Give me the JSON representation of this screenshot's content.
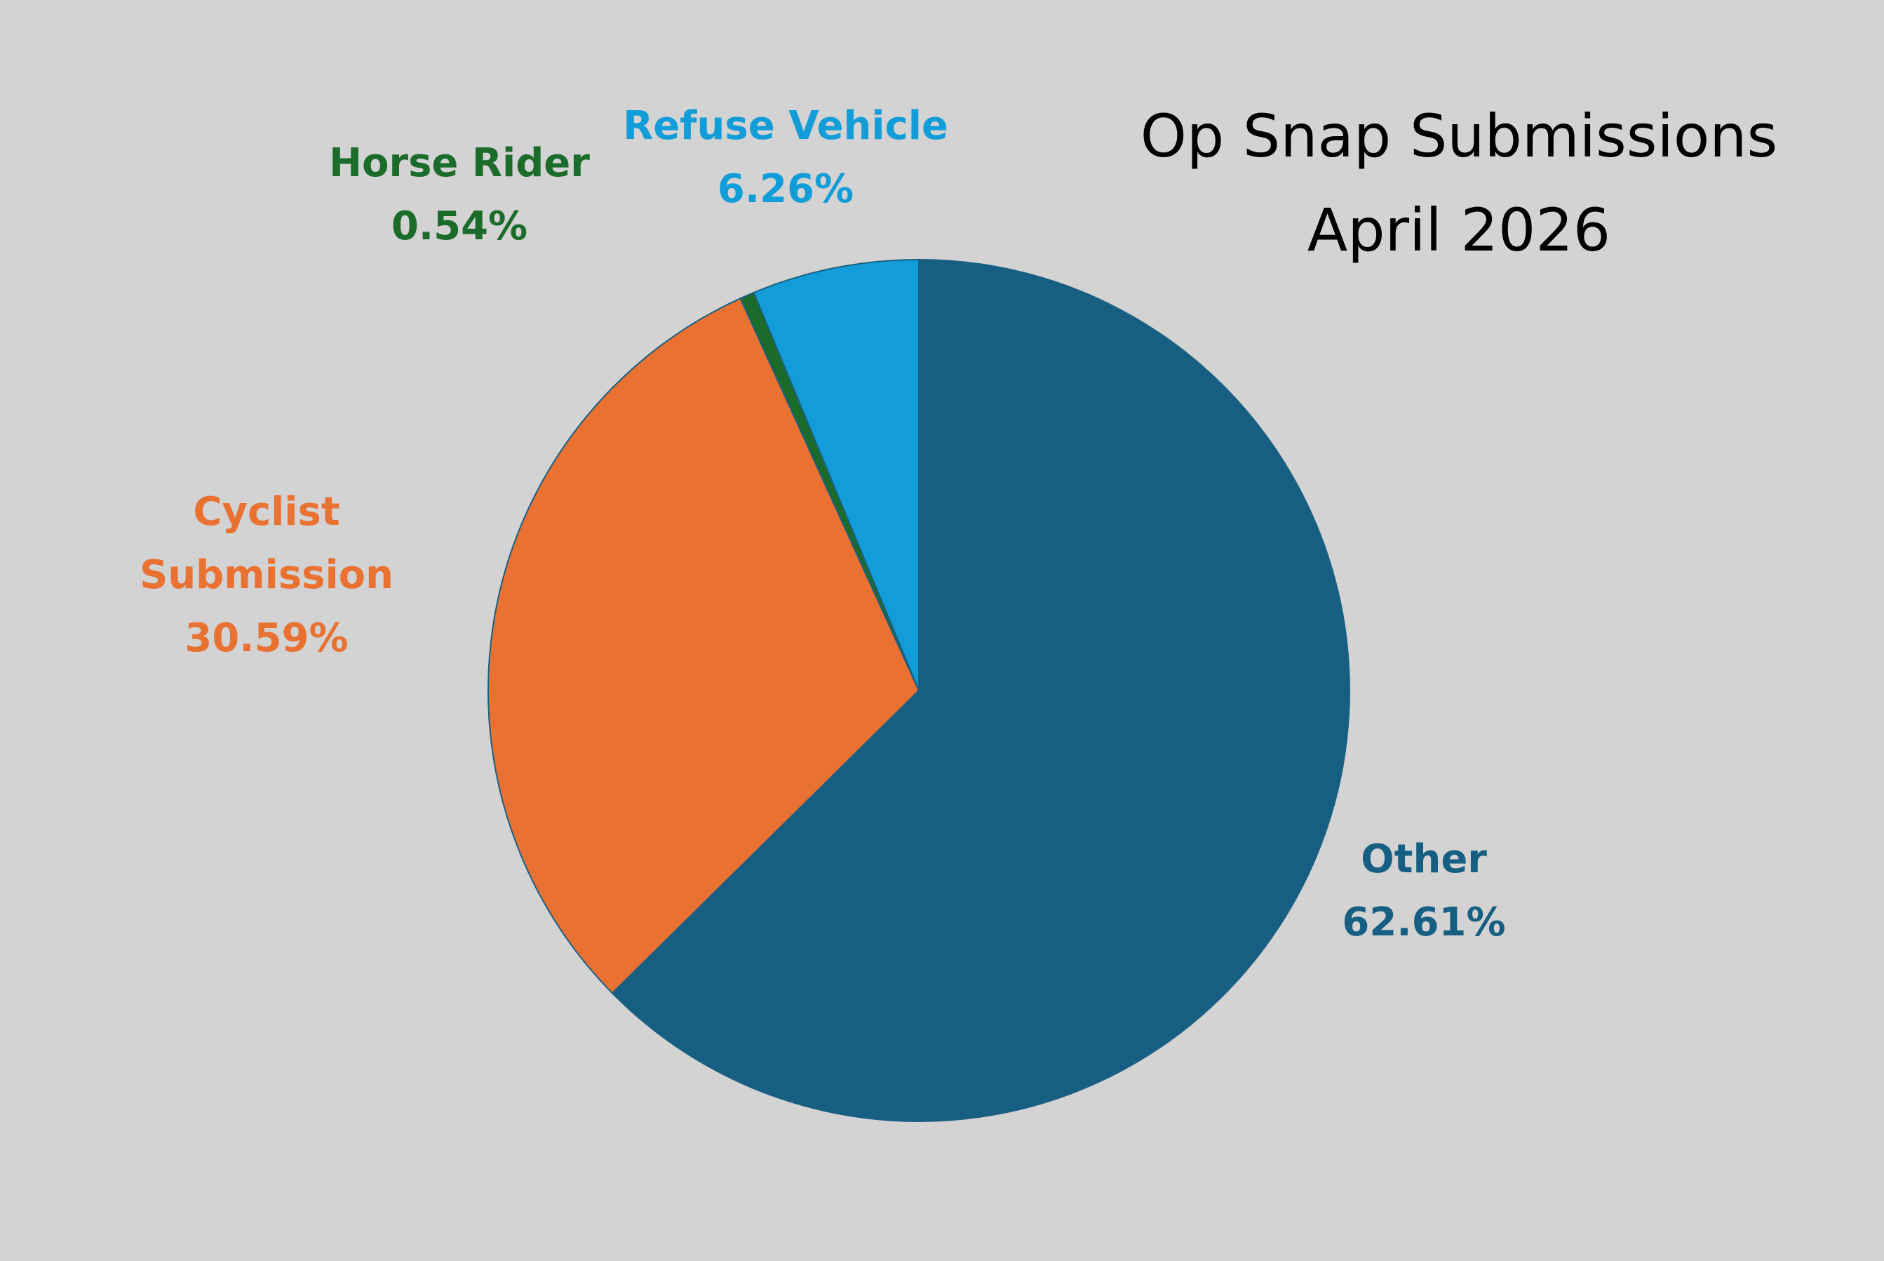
{
  "chart_data": {
    "type": "pie",
    "title_lines": [
      "Op Snap Submissions",
      "April 2026"
    ],
    "slices": [
      {
        "label_lines": [
          "Other"
        ],
        "value": 62.61,
        "value_label": "62.61%",
        "color": "#175f82"
      },
      {
        "label_lines": [
          "Cyclist",
          "Submission"
        ],
        "value": 30.59,
        "value_label": "30.59%",
        "color": "#e97233"
      },
      {
        "label_lines": [
          "Horse Rider"
        ],
        "value": 0.54,
        "value_label": "0.54%",
        "color": "#1b6b2b"
      },
      {
        "label_lines": [
          "Refuse Vehicle"
        ],
        "value": 6.26,
        "value_label": "6.26%",
        "color": "#129dd8"
      }
    ],
    "start_angle": "12 o'clock",
    "direction": "clockwise",
    "legend": "none",
    "background": "#d3d3d3"
  }
}
